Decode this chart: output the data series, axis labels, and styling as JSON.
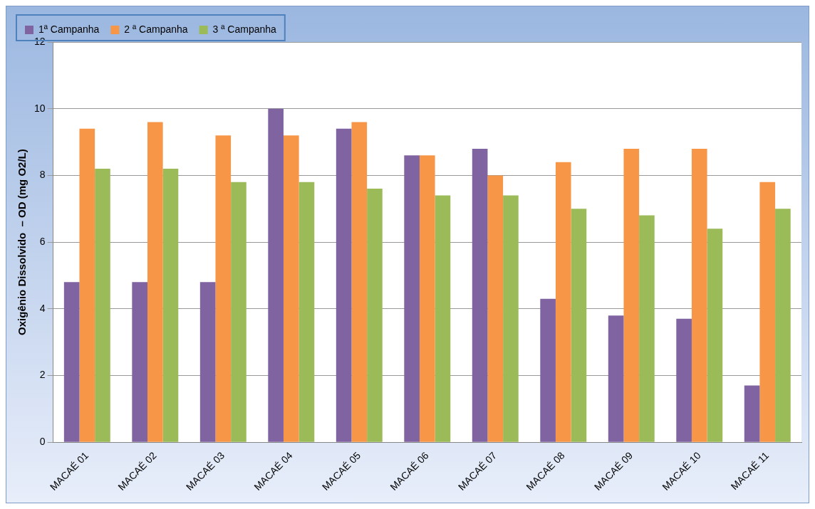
{
  "chart_data": {
    "type": "bar",
    "ylabel": "Oxigênio Dissolvido  – OD (mg O2/L)",
    "categories": [
      "MACAÉ 01",
      "MACAÉ 02",
      "MACAÉ 03",
      "MACAÉ 04",
      "MACAÉ 05",
      "MACAÉ 06",
      "MACAÉ 07",
      "MACAÉ 08",
      "MACAÉ 09",
      "MACAÉ 10",
      "MACAÉ 11"
    ],
    "series": [
      {
        "name": "1ª Campanha",
        "color": "#8064a2",
        "values": [
          4.8,
          4.8,
          4.8,
          10,
          9.4,
          8.6,
          8.8,
          4.3,
          3.8,
          3.7,
          1.7
        ]
      },
      {
        "name": "2 ª Campanha",
        "color": "#f79646",
        "values": [
          9.4,
          9.6,
          9.2,
          9.2,
          9.6,
          8.6,
          8.0,
          8.4,
          8.8,
          8.8,
          7.8
        ]
      },
      {
        "name": "3 ª Campanha",
        "color": "#9bbb59",
        "values": [
          8.2,
          8.2,
          7.8,
          7.8,
          7.6,
          7.4,
          7.4,
          7.0,
          6.8,
          6.4,
          7.0
        ]
      }
    ],
    "ylim": [
      0,
      12
    ],
    "yticks": [
      0,
      2,
      4,
      6,
      8,
      10,
      12
    ],
    "grid": "y",
    "legend": "top left"
  }
}
